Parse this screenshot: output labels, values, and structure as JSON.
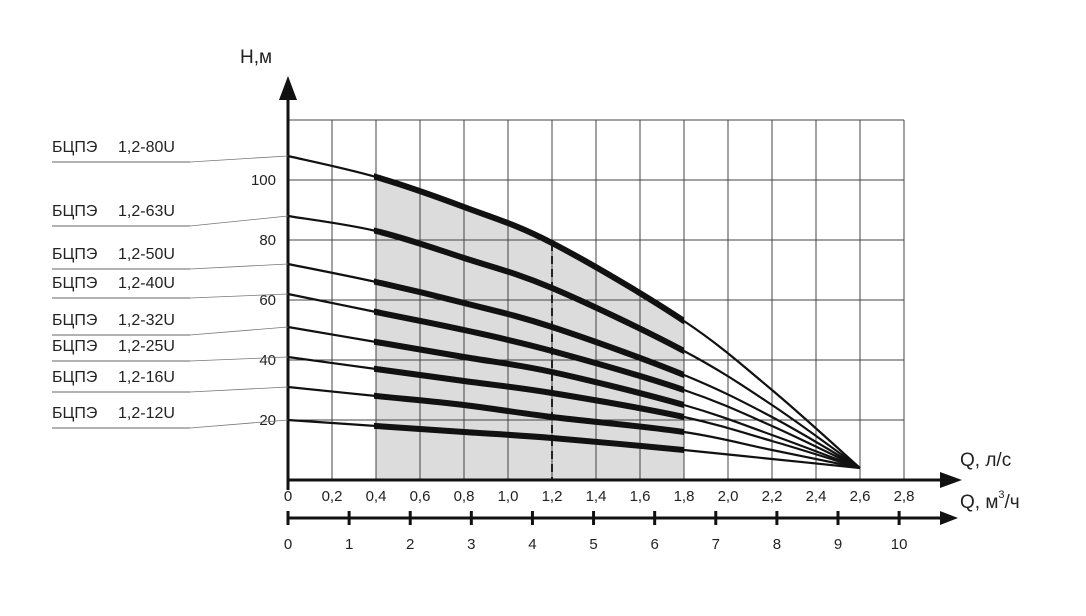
{
  "chart_data": {
    "type": "line",
    "y_axis": {
      "label": "Н,м",
      "ticks": [
        "20",
        "40",
        "60",
        "80",
        "100"
      ],
      "range": [
        0,
        120
      ]
    },
    "x_axis_primary": {
      "label": "Q, л/с",
      "ticks": [
        "0",
        "0,2",
        "0,4",
        "0,6",
        "0,8",
        "1,0",
        "1,2",
        "1,4",
        "1,6",
        "1,8",
        "2,0",
        "2,2",
        "2,4",
        "2,6",
        "2,8"
      ],
      "values": [
        0,
        0.2,
        0.4,
        0.6,
        0.8,
        1.0,
        1.2,
        1.4,
        1.6,
        1.8,
        2.0,
        2.2,
        2.4,
        2.6,
        2.8
      ],
      "range": [
        0,
        2.8
      ]
    },
    "x_axis_secondary": {
      "label": "Q, м³/ч",
      "label_main": "Q, м",
      "label_sup": "3",
      "label_tail": "/ч",
      "ticks": [
        "0",
        "1",
        "2",
        "3",
        "4",
        "5",
        "6",
        "7",
        "8",
        "9",
        "10"
      ],
      "values": [
        0,
        1,
        2,
        3,
        4,
        5,
        6,
        7,
        8,
        9,
        10
      ]
    },
    "working_range": {
      "x_min": 0.4,
      "x_max": 1.8,
      "color": "#dcdcdc"
    },
    "nominal_flow": 1.2,
    "grid": true,
    "series": [
      {
        "name": "БЦПЭ",
        "model": "1,2-80U",
        "values": [
          [
            0,
            108
          ],
          [
            0.4,
            101
          ],
          [
            0.8,
            91
          ],
          [
            1.2,
            79
          ],
          [
            1.8,
            53
          ],
          [
            2.2,
            30
          ],
          [
            2.6,
            4
          ]
        ]
      },
      {
        "name": "БЦПЭ",
        "model": "1,2-63U",
        "values": [
          [
            0,
            88
          ],
          [
            0.4,
            83
          ],
          [
            0.8,
            74
          ],
          [
            1.2,
            64
          ],
          [
            1.8,
            43
          ],
          [
            2.2,
            25
          ],
          [
            2.6,
            4
          ]
        ]
      },
      {
        "name": "БЦПЭ",
        "model": "1,2-50U",
        "values": [
          [
            0,
            72
          ],
          [
            0.4,
            66
          ],
          [
            0.8,
            59
          ],
          [
            1.2,
            51
          ],
          [
            1.8,
            35
          ],
          [
            2.2,
            21
          ],
          [
            2.6,
            4
          ]
        ]
      },
      {
        "name": "БЦПЭ",
        "model": "1,2-40U",
        "values": [
          [
            0,
            62
          ],
          [
            0.4,
            56
          ],
          [
            0.8,
            50
          ],
          [
            1.2,
            43
          ],
          [
            1.8,
            30
          ],
          [
            2.2,
            18
          ],
          [
            2.6,
            4
          ]
        ]
      },
      {
        "name": "БЦПЭ",
        "model": "1,2-32U",
        "values": [
          [
            0,
            51
          ],
          [
            0.4,
            46
          ],
          [
            0.8,
            41
          ],
          [
            1.2,
            36
          ],
          [
            1.8,
            25
          ],
          [
            2.2,
            15
          ],
          [
            2.6,
            4
          ]
        ]
      },
      {
        "name": "БЦПЭ",
        "model": "1,2-25U",
        "values": [
          [
            0,
            41
          ],
          [
            0.4,
            37
          ],
          [
            0.8,
            33
          ],
          [
            1.2,
            29
          ],
          [
            1.8,
            21
          ],
          [
            2.2,
            13
          ],
          [
            2.6,
            4
          ]
        ]
      },
      {
        "name": "БЦПЭ",
        "model": "1,2-16U",
        "values": [
          [
            0,
            31
          ],
          [
            0.4,
            28
          ],
          [
            0.8,
            25
          ],
          [
            1.2,
            21
          ],
          [
            1.8,
            16
          ],
          [
            2.2,
            10
          ],
          [
            2.6,
            4
          ]
        ]
      },
      {
        "name": "БЦПЭ",
        "model": "1,2-12U",
        "values": [
          [
            0,
            20
          ],
          [
            0.4,
            18
          ],
          [
            0.8,
            16
          ],
          [
            1.2,
            14
          ],
          [
            1.8,
            10
          ],
          [
            2.2,
            7
          ],
          [
            2.6,
            4
          ]
        ]
      }
    ]
  }
}
